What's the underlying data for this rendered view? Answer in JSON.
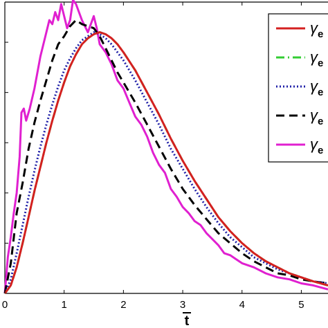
{
  "chart_data": {
    "type": "line",
    "xlabel": "t",
    "x_ticks": [
      "0",
      "1",
      "2",
      "3",
      "4",
      "5"
    ],
    "xlim": [
      0,
      5.45
    ],
    "ylim": [
      0,
      1.45
    ],
    "grid": false,
    "legend_position": "top-right",
    "series": [
      {
        "name": "γe",
        "color": "#d42020",
        "dash": "solid",
        "points": [
          [
            0,
            0
          ],
          [
            0.1,
            0.04
          ],
          [
            0.2,
            0.13
          ],
          [
            0.3,
            0.25
          ],
          [
            0.4,
            0.38
          ],
          [
            0.5,
            0.51
          ],
          [
            0.6,
            0.63
          ],
          [
            0.7,
            0.75
          ],
          [
            0.8,
            0.86
          ],
          [
            0.9,
            0.96
          ],
          [
            1.0,
            1.05
          ],
          [
            1.1,
            1.13
          ],
          [
            1.2,
            1.19
          ],
          [
            1.3,
            1.24
          ],
          [
            1.4,
            1.27
          ],
          [
            1.5,
            1.29
          ],
          [
            1.6,
            1.3
          ],
          [
            1.7,
            1.29
          ],
          [
            1.8,
            1.27
          ],
          [
            1.9,
            1.24
          ],
          [
            2.0,
            1.2
          ],
          [
            2.2,
            1.11
          ],
          [
            2.4,
            1.0
          ],
          [
            2.6,
            0.89
          ],
          [
            2.8,
            0.77
          ],
          [
            3.0,
            0.66
          ],
          [
            3.2,
            0.56
          ],
          [
            3.4,
            0.47
          ],
          [
            3.6,
            0.38
          ],
          [
            3.8,
            0.31
          ],
          [
            4.0,
            0.25
          ],
          [
            4.2,
            0.2
          ],
          [
            4.4,
            0.16
          ],
          [
            4.6,
            0.13
          ],
          [
            4.8,
            0.1
          ],
          [
            5.0,
            0.08
          ],
          [
            5.2,
            0.06
          ],
          [
            5.45,
            0.04
          ]
        ]
      },
      {
        "name": "γe",
        "color": "#33cc33",
        "dash": "dashdot",
        "points": [
          [
            0,
            0
          ],
          [
            0.1,
            0.04
          ],
          [
            0.2,
            0.13
          ],
          [
            0.3,
            0.25
          ],
          [
            0.4,
            0.38
          ],
          [
            0.5,
            0.51
          ],
          [
            0.6,
            0.63
          ],
          [
            0.7,
            0.75
          ],
          [
            0.8,
            0.86
          ],
          [
            0.9,
            0.96
          ],
          [
            1.0,
            1.05
          ],
          [
            1.1,
            1.13
          ],
          [
            1.2,
            1.19
          ],
          [
            1.3,
            1.24
          ],
          [
            1.4,
            1.27
          ],
          [
            1.5,
            1.29
          ],
          [
            1.6,
            1.3
          ],
          [
            1.7,
            1.29
          ],
          [
            1.8,
            1.27
          ],
          [
            1.9,
            1.24
          ],
          [
            2.0,
            1.2
          ],
          [
            2.2,
            1.11
          ],
          [
            2.4,
            1.0
          ],
          [
            2.6,
            0.89
          ],
          [
            2.8,
            0.77
          ],
          [
            3.0,
            0.66
          ],
          [
            3.2,
            0.56
          ],
          [
            3.4,
            0.47
          ],
          [
            3.6,
            0.38
          ],
          [
            3.8,
            0.31
          ],
          [
            4.0,
            0.25
          ],
          [
            4.2,
            0.2
          ],
          [
            4.4,
            0.16
          ],
          [
            4.6,
            0.13
          ],
          [
            4.8,
            0.1
          ],
          [
            5.0,
            0.08
          ],
          [
            5.2,
            0.06
          ],
          [
            5.45,
            0.04
          ]
        ]
      },
      {
        "name": "γe",
        "color": "#1f1fa8",
        "dash": "dotted",
        "points": [
          [
            0,
            0
          ],
          [
            0.1,
            0.07
          ],
          [
            0.2,
            0.2
          ],
          [
            0.3,
            0.34
          ],
          [
            0.4,
            0.48
          ],
          [
            0.5,
            0.61
          ],
          [
            0.6,
            0.73
          ],
          [
            0.7,
            0.84
          ],
          [
            0.8,
            0.94
          ],
          [
            0.9,
            1.03
          ],
          [
            1.0,
            1.11
          ],
          [
            1.1,
            1.17
          ],
          [
            1.2,
            1.22
          ],
          [
            1.3,
            1.26
          ],
          [
            1.4,
            1.28
          ],
          [
            1.5,
            1.3
          ],
          [
            1.6,
            1.29
          ],
          [
            1.7,
            1.27
          ],
          [
            1.8,
            1.24
          ],
          [
            1.9,
            1.2
          ],
          [
            2.0,
            1.16
          ],
          [
            2.2,
            1.06
          ],
          [
            2.4,
            0.95
          ],
          [
            2.6,
            0.84
          ],
          [
            2.8,
            0.72
          ],
          [
            3.0,
            0.62
          ],
          [
            3.2,
            0.52
          ],
          [
            3.4,
            0.43
          ],
          [
            3.6,
            0.35
          ],
          [
            3.8,
            0.28
          ],
          [
            4.0,
            0.23
          ],
          [
            4.2,
            0.18
          ],
          [
            4.4,
            0.15
          ],
          [
            4.6,
            0.12
          ],
          [
            4.8,
            0.1
          ],
          [
            5.0,
            0.08
          ],
          [
            5.2,
            0.06
          ],
          [
            5.45,
            0.05
          ]
        ]
      },
      {
        "name": "γe",
        "color": "#000000",
        "dash": "dashed",
        "points": [
          [
            0,
            0
          ],
          [
            0.1,
            0.15
          ],
          [
            0.2,
            0.4
          ],
          [
            0.3,
            0.55
          ],
          [
            0.4,
            0.72
          ],
          [
            0.5,
            0.85
          ],
          [
            0.6,
            0.96
          ],
          [
            0.7,
            1.06
          ],
          [
            0.8,
            1.16
          ],
          [
            0.9,
            1.24
          ],
          [
            1.0,
            1.28
          ],
          [
            1.1,
            1.33
          ],
          [
            1.2,
            1.36
          ],
          [
            1.3,
            1.34
          ],
          [
            1.4,
            1.33
          ],
          [
            1.5,
            1.32
          ],
          [
            1.6,
            1.28
          ],
          [
            1.7,
            1.22
          ],
          [
            1.8,
            1.16
          ],
          [
            1.9,
            1.1
          ],
          [
            2.0,
            1.05
          ],
          [
            2.2,
            0.95
          ],
          [
            2.4,
            0.84
          ],
          [
            2.6,
            0.73
          ],
          [
            2.8,
            0.62
          ],
          [
            3.0,
            0.52
          ],
          [
            3.2,
            0.44
          ],
          [
            3.4,
            0.37
          ],
          [
            3.6,
            0.3
          ],
          [
            3.8,
            0.25
          ],
          [
            4.0,
            0.2
          ],
          [
            4.2,
            0.16
          ],
          [
            4.4,
            0.13
          ],
          [
            4.6,
            0.1
          ],
          [
            4.8,
            0.09
          ],
          [
            5.0,
            0.07
          ],
          [
            5.2,
            0.06
          ],
          [
            5.45,
            0.05
          ]
        ]
      },
      {
        "name": "γe",
        "color": "#e020d0",
        "dash": "solid",
        "points": [
          [
            0,
            0
          ],
          [
            0.05,
            0.18
          ],
          [
            0.1,
            0.28
          ],
          [
            0.15,
            0.4
          ],
          [
            0.2,
            0.5
          ],
          [
            0.25,
            0.68
          ],
          [
            0.28,
            0.9
          ],
          [
            0.32,
            0.92
          ],
          [
            0.36,
            0.86
          ],
          [
            0.42,
            0.92
          ],
          [
            0.5,
            1.02
          ],
          [
            0.6,
            1.18
          ],
          [
            0.7,
            1.3
          ],
          [
            0.75,
            1.36
          ],
          [
            0.8,
            1.34
          ],
          [
            0.85,
            1.4
          ],
          [
            0.9,
            1.36
          ],
          [
            0.95,
            1.44
          ],
          [
            1.0,
            1.38
          ],
          [
            1.05,
            1.32
          ],
          [
            1.1,
            1.36
          ],
          [
            1.15,
            1.46
          ],
          [
            1.2,
            1.44
          ],
          [
            1.3,
            1.36
          ],
          [
            1.4,
            1.3
          ],
          [
            1.5,
            1.38
          ],
          [
            1.55,
            1.32
          ],
          [
            1.6,
            1.24
          ],
          [
            1.7,
            1.2
          ],
          [
            1.8,
            1.14
          ],
          [
            1.9,
            1.06
          ],
          [
            2.0,
            1.02
          ],
          [
            2.1,
            0.95
          ],
          [
            2.2,
            0.88
          ],
          [
            2.3,
            0.84
          ],
          [
            2.4,
            0.78
          ],
          [
            2.5,
            0.7
          ],
          [
            2.6,
            0.64
          ],
          [
            2.7,
            0.6
          ],
          [
            2.8,
            0.52
          ],
          [
            2.9,
            0.48
          ],
          [
            3.0,
            0.43
          ],
          [
            3.1,
            0.4
          ],
          [
            3.2,
            0.36
          ],
          [
            3.3,
            0.34
          ],
          [
            3.4,
            0.3
          ],
          [
            3.5,
            0.27
          ],
          [
            3.6,
            0.24
          ],
          [
            3.7,
            0.2
          ],
          [
            3.8,
            0.19
          ],
          [
            3.9,
            0.17
          ],
          [
            4.0,
            0.15
          ],
          [
            4.2,
            0.13
          ],
          [
            4.4,
            0.1
          ],
          [
            4.6,
            0.08
          ],
          [
            4.8,
            0.07
          ],
          [
            5.0,
            0.05
          ],
          [
            5.2,
            0.04
          ],
          [
            5.45,
            0.02
          ]
        ]
      }
    ]
  }
}
